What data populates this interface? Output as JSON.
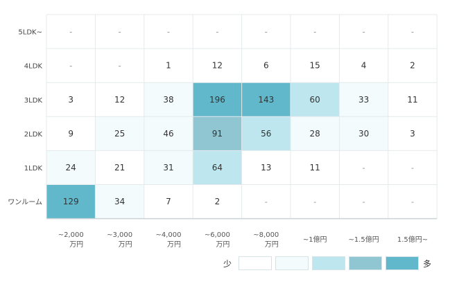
{
  "chart_data": {
    "type": "heatmap",
    "rows": [
      "5LDK~",
      "4LDK",
      "3LDK",
      "2LDK",
      "1LDK",
      "ワンルーム"
    ],
    "columns": [
      [
        "~2,000",
        "万円"
      ],
      [
        "~3,000",
        "万円"
      ],
      [
        "~4,000",
        "万円"
      ],
      [
        "~6,000",
        "万円"
      ],
      [
        "~8,000",
        "万円"
      ],
      [
        "~1億円"
      ],
      [
        "~1.5億円"
      ],
      [
        "1.5億円~"
      ]
    ],
    "values": [
      [
        "-",
        "-",
        "-",
        "-",
        "-",
        "-",
        "-",
        "-"
      ],
      [
        "-",
        "-",
        "1",
        "12",
        "6",
        "15",
        "4",
        "2"
      ],
      [
        "3",
        "12",
        "38",
        "196",
        "143",
        "60",
        "33",
        "11"
      ],
      [
        "9",
        "25",
        "46",
        "91",
        "56",
        "28",
        "30",
        "3"
      ],
      [
        "24",
        "21",
        "31",
        "64",
        "13",
        "11",
        "-",
        "-"
      ],
      [
        "129",
        "34",
        "7",
        "2",
        "-",
        "-",
        "-",
        "-"
      ]
    ],
    "levels": [
      [
        0,
        0,
        0,
        0,
        0,
        0,
        0,
        0
      ],
      [
        0,
        0,
        0,
        0,
        0,
        0,
        0,
        0
      ],
      [
        0,
        0,
        1,
        4,
        4,
        2,
        1,
        0
      ],
      [
        0,
        1,
        1,
        3,
        2,
        1,
        1,
        0
      ],
      [
        1,
        0,
        1,
        2,
        0,
        0,
        0,
        0
      ],
      [
        4,
        1,
        0,
        0,
        0,
        0,
        0,
        0
      ]
    ],
    "color_scale": [
      "#ffffff",
      "#f3fbfd",
      "#bde6ef",
      "#8fc6d2",
      "#62b8cb"
    ],
    "legend": {
      "low_label": "少",
      "high_label": "多"
    }
  }
}
